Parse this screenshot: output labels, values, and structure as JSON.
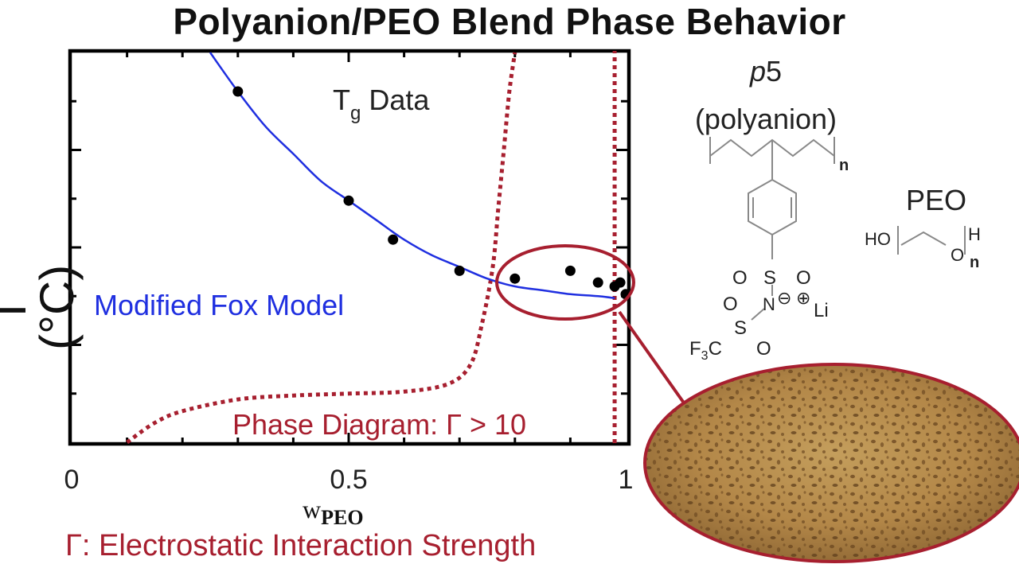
{
  "title": "Polyanion/PEO Blend Phase Behavior",
  "footnote": "Γ: Electrostatic Interaction Strength",
  "chart_data": {
    "type": "scatter",
    "xlabel_main": "w",
    "xlabel_sub": "PEO",
    "ylabel": "T (°C)",
    "xlim": [
      0,
      1
    ],
    "ylim": [
      0,
      1
    ],
    "x_ticks": [
      {
        "value": 0,
        "label": "0"
      },
      {
        "value": 0.5,
        "label": "0.5"
      },
      {
        "value": 1,
        "label": "1"
      }
    ],
    "series": [
      {
        "name": "Tg Data",
        "name_main": "T",
        "name_sub": "g",
        "name_suffix": " Data",
        "kind": "points",
        "color": "#000000",
        "points": [
          [
            0.3,
            0.9
          ],
          [
            0.5,
            0.62
          ],
          [
            0.58,
            0.52
          ],
          [
            0.7,
            0.44
          ],
          [
            0.8,
            0.42
          ],
          [
            0.9,
            0.44
          ],
          [
            0.95,
            0.41
          ],
          [
            0.98,
            0.4
          ],
          [
            0.99,
            0.41
          ],
          [
            1.0,
            0.38
          ]
        ]
      },
      {
        "name": "Modified Fox Model",
        "kind": "curve",
        "color": "#1f2fe0",
        "points": [
          [
            0.25,
            1.0
          ],
          [
            0.3,
            0.9
          ],
          [
            0.35,
            0.81
          ],
          [
            0.4,
            0.74
          ],
          [
            0.45,
            0.67
          ],
          [
            0.5,
            0.62
          ],
          [
            0.55,
            0.57
          ],
          [
            0.6,
            0.52
          ],
          [
            0.65,
            0.48
          ],
          [
            0.7,
            0.45
          ],
          [
            0.75,
            0.42
          ],
          [
            0.8,
            0.4
          ],
          [
            0.85,
            0.39
          ],
          [
            0.9,
            0.38
          ],
          [
            0.95,
            0.375
          ],
          [
            0.98,
            0.37
          ]
        ]
      },
      {
        "name": "Phase Diagram: Γ > 10",
        "kind": "dotted-curve",
        "color": "#a71f2f",
        "points": [
          [
            0.1,
            0.0
          ],
          [
            0.15,
            0.05
          ],
          [
            0.2,
            0.08
          ],
          [
            0.3,
            0.11
          ],
          [
            0.4,
            0.12
          ],
          [
            0.5,
            0.125
          ],
          [
            0.6,
            0.13
          ],
          [
            0.68,
            0.15
          ],
          [
            0.72,
            0.2
          ],
          [
            0.74,
            0.3
          ],
          [
            0.76,
            0.45
          ],
          [
            0.77,
            0.6
          ],
          [
            0.78,
            0.75
          ],
          [
            0.79,
            0.9
          ],
          [
            0.8,
            1.0
          ]
        ],
        "boundary_x": 0.98
      }
    ],
    "highlight": {
      "shape": "ellipse",
      "color": "#a71f2f",
      "center": [
        0.87,
        0.42
      ]
    }
  },
  "structures": {
    "polyanion_label_italic": "p",
    "polyanion_label_num": "5",
    "polyanion_name": "(polyanion)",
    "repeat_n": "n",
    "sulfonyl": {
      "left_o": "O",
      "s": "S",
      "right_o": "O"
    },
    "nitrogen": "N",
    "minus": "⊖",
    "plus": "⊕",
    "lithium": "Li",
    "cf3": {
      "f": "F",
      "three": "3",
      "c": "C"
    },
    "lower_s": "S",
    "lower_o1": "O",
    "lower_o2": "O",
    "peo_name": "PEO",
    "peo_ho": "HO",
    "peo_o": "O",
    "peo_h": "H",
    "peo_n": "n"
  },
  "micrograph": {
    "description_icon": "microscopy-image",
    "tint": "#b48a4a",
    "border": "#a71f2f"
  }
}
